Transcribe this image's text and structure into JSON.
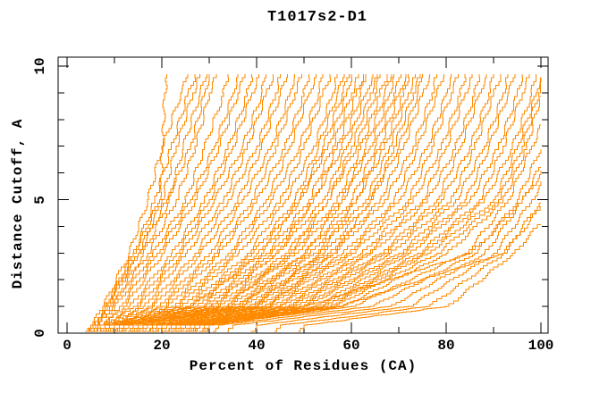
{
  "title": "T1017s2-D1",
  "chart_data": {
    "type": "line",
    "title": "T1017s2-D1",
    "xlabel": "Percent of Residues (CA)",
    "ylabel": "Distance Cutoff, A",
    "xlim": [
      0,
      100
    ],
    "ylim": [
      0,
      10
    ],
    "grid": false,
    "legend_position": "none",
    "x_major_ticks": [
      0,
      20,
      40,
      60,
      80,
      100
    ],
    "x_minor_ticks": [
      10,
      30,
      50,
      70,
      90
    ],
    "x_tick_labels": [
      "0",
      "20",
      "40",
      "60",
      "80",
      "100"
    ],
    "y_major_ticks": [
      0,
      5,
      10
    ],
    "y_minor_ticks": [
      1,
      2,
      3,
      4,
      6,
      7,
      8,
      9
    ],
    "y_tick_labels": [
      "0",
      "5",
      "10"
    ],
    "line_color": "#FF8A00",
    "axis_color": "#000000",
    "description": "Each orange curve is one model: cumulative percent of CA residues (x) under a distance cutoff in Angstroms (y). Curves are estimated as x-positions sampled at fixed y levels.",
    "y_levels": [
      0.3,
      1,
      3,
      5,
      7,
      9,
      9.7
    ],
    "curves": [
      [
        6,
        8,
        14,
        19.5,
        20.2,
        20.6,
        21
      ],
      [
        5,
        7.5,
        13,
        17,
        20,
        24,
        25.5
      ],
      [
        5.5,
        8,
        14,
        18.5,
        22,
        25.5,
        27
      ],
      [
        6,
        8.5,
        15,
        20,
        23,
        26.5,
        28
      ],
      [
        6.5,
        9.5,
        16,
        21.5,
        24.5,
        28,
        29.5
      ],
      [
        5.5,
        8,
        15,
        21,
        26,
        29,
        30
      ],
      [
        6,
        9,
        17,
        23,
        27,
        30,
        31.5
      ],
      [
        6,
        10,
        18,
        25,
        29,
        33,
        34
      ],
      [
        7,
        11,
        19,
        26,
        31,
        35,
        36
      ],
      [
        7,
        12,
        20,
        27,
        32,
        36,
        37.5
      ],
      [
        8,
        13,
        22,
        29,
        34,
        38,
        39
      ],
      [
        8,
        14,
        23,
        30,
        35,
        39,
        40.5
      ],
      [
        9,
        15,
        24,
        31,
        37,
        41,
        42
      ],
      [
        9,
        16,
        25,
        33,
        38,
        42,
        43.5
      ],
      [
        10,
        17,
        27,
        34,
        40,
        44,
        45
      ],
      [
        10,
        18,
        28,
        36,
        41,
        45,
        46.5
      ],
      [
        11,
        19,
        30,
        37,
        43,
        47,
        48
      ],
      [
        11,
        20,
        31,
        39,
        44,
        48,
        49.5
      ],
      [
        12,
        21,
        32,
        40,
        46,
        50,
        51
      ],
      [
        12,
        22,
        34,
        42,
        47,
        51,
        52.5
      ],
      [
        13,
        23,
        35,
        43,
        49,
        53,
        54
      ],
      [
        13,
        24,
        36,
        45,
        50,
        54,
        55.5
      ],
      [
        14,
        25,
        38,
        46,
        52,
        56,
        57
      ],
      [
        14,
        26,
        39,
        48,
        53,
        57,
        58.5
      ],
      [
        15,
        27,
        40,
        49,
        55,
        59,
        60
      ],
      [
        15,
        28,
        42,
        51,
        56,
        60,
        61.5
      ],
      [
        16,
        29,
        43,
        52,
        58,
        62,
        63
      ],
      [
        16,
        30,
        44,
        54,
        59,
        63,
        64.5
      ],
      [
        17,
        31,
        46,
        55,
        61,
        65,
        66
      ],
      [
        17,
        32,
        47,
        57,
        62,
        66,
        67.5
      ],
      [
        18,
        33,
        48,
        58,
        64,
        68,
        69
      ],
      [
        18,
        34,
        50,
        60,
        65,
        69,
        70.5
      ],
      [
        19,
        35,
        51,
        61,
        67,
        71,
        72
      ],
      [
        19,
        36,
        52,
        63,
        68,
        72,
        73.5
      ],
      [
        20,
        37,
        54,
        64,
        70,
        74,
        75
      ],
      [
        20,
        38,
        55,
        66,
        71,
        75,
        76.5
      ],
      [
        21,
        39,
        56,
        67,
        73,
        77,
        78
      ],
      [
        21,
        40,
        58,
        69,
        74,
        78,
        79.5
      ],
      [
        22,
        41,
        59,
        70,
        76,
        80,
        81
      ],
      [
        22,
        42,
        60,
        72,
        77,
        81,
        82.5
      ],
      [
        23,
        43,
        62,
        73,
        79,
        83,
        84
      ],
      [
        23,
        44,
        63,
        75,
        80,
        84,
        85.5
      ],
      [
        7,
        26,
        41,
        49,
        54,
        58,
        59.5
      ],
      [
        8,
        30,
        44,
        52,
        57,
        61,
        62.5
      ],
      [
        9,
        33,
        47,
        55,
        60,
        64,
        65.5
      ],
      [
        10,
        36,
        50,
        58,
        63,
        67,
        68.5
      ],
      [
        11,
        39,
        53,
        61,
        66,
        70,
        71.5
      ],
      [
        12,
        42,
        56,
        64,
        69,
        73,
        74.5
      ],
      [
        24,
        45,
        64,
        76,
        82,
        86,
        87
      ],
      [
        24,
        46,
        66,
        78,
        83,
        87,
        88.5
      ],
      [
        25,
        47,
        67,
        79,
        85,
        89,
        90
      ],
      [
        25,
        48,
        68,
        81,
        86,
        90,
        91.5
      ],
      [
        26,
        49,
        70,
        82,
        88,
        92,
        93
      ],
      [
        26,
        50,
        71,
        84,
        89,
        93,
        94.5
      ],
      [
        27,
        52,
        72,
        85,
        91,
        95,
        96
      ],
      [
        27,
        53,
        74,
        87,
        92,
        96,
        97.5
      ],
      [
        28,
        54,
        75,
        88,
        94,
        98,
        99
      ],
      [
        28,
        55,
        76,
        90,
        95,
        99,
        100
      ],
      [
        29,
        56,
        78,
        91,
        96,
        99.5,
        100.5
      ],
      [
        30,
        58,
        80,
        92,
        97,
        100,
        101.5
      ],
      [
        30,
        60,
        84,
        93,
        98,
        103,
        108
      ],
      [
        32,
        64,
        86,
        95,
        100,
        106,
        112
      ],
      [
        35,
        68,
        88,
        96,
        102,
        110,
        118
      ],
      [
        40,
        72,
        90,
        98,
        105,
        114,
        124
      ],
      [
        45,
        76,
        92,
        100,
        110,
        120,
        130
      ],
      [
        50,
        80,
        94,
        104,
        116,
        128,
        140
      ],
      [
        30,
        57,
        92,
        101,
        112,
        126,
        140
      ],
      [
        28,
        50,
        85,
        96,
        104,
        115,
        126
      ]
    ]
  }
}
